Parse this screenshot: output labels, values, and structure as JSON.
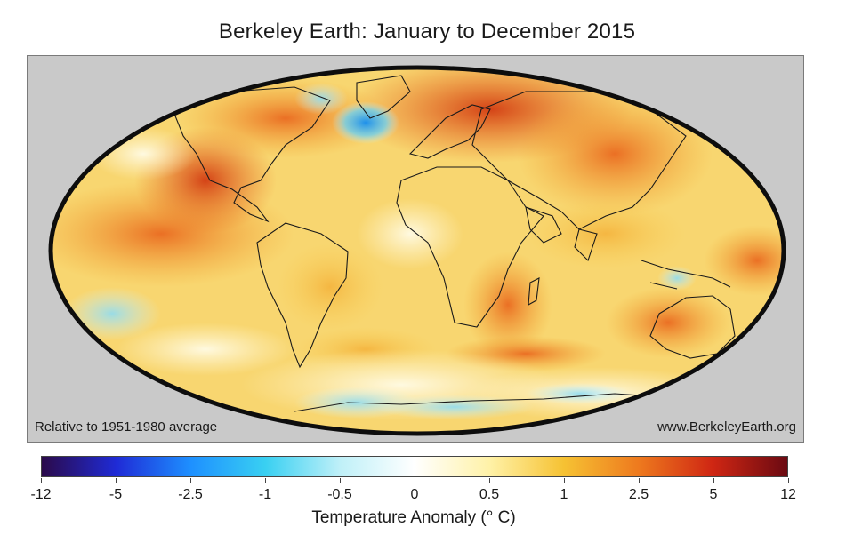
{
  "title": "Berkeley Earth: January to December 2015",
  "map": {
    "projection": "Mollweide",
    "note_left": "Relative to 1951-1980 average",
    "note_right": "www.BerkeleyEarth.org"
  },
  "colorbar": {
    "label": "Temperature Anomaly (° C)",
    "ticks": [
      "-12",
      "-5",
      "-2.5",
      "-1",
      "-0.5",
      "0",
      "0.5",
      "1",
      "2.5",
      "5",
      "12"
    ],
    "colors": [
      "#2b0a4a",
      "#1f2bd6",
      "#1e90ff",
      "#39d0f2",
      "#bff0f8",
      "#ffffff",
      "#fff2a8",
      "#f6c233",
      "#ee7a1e",
      "#cf2613",
      "#6b0a12"
    ]
  }
}
